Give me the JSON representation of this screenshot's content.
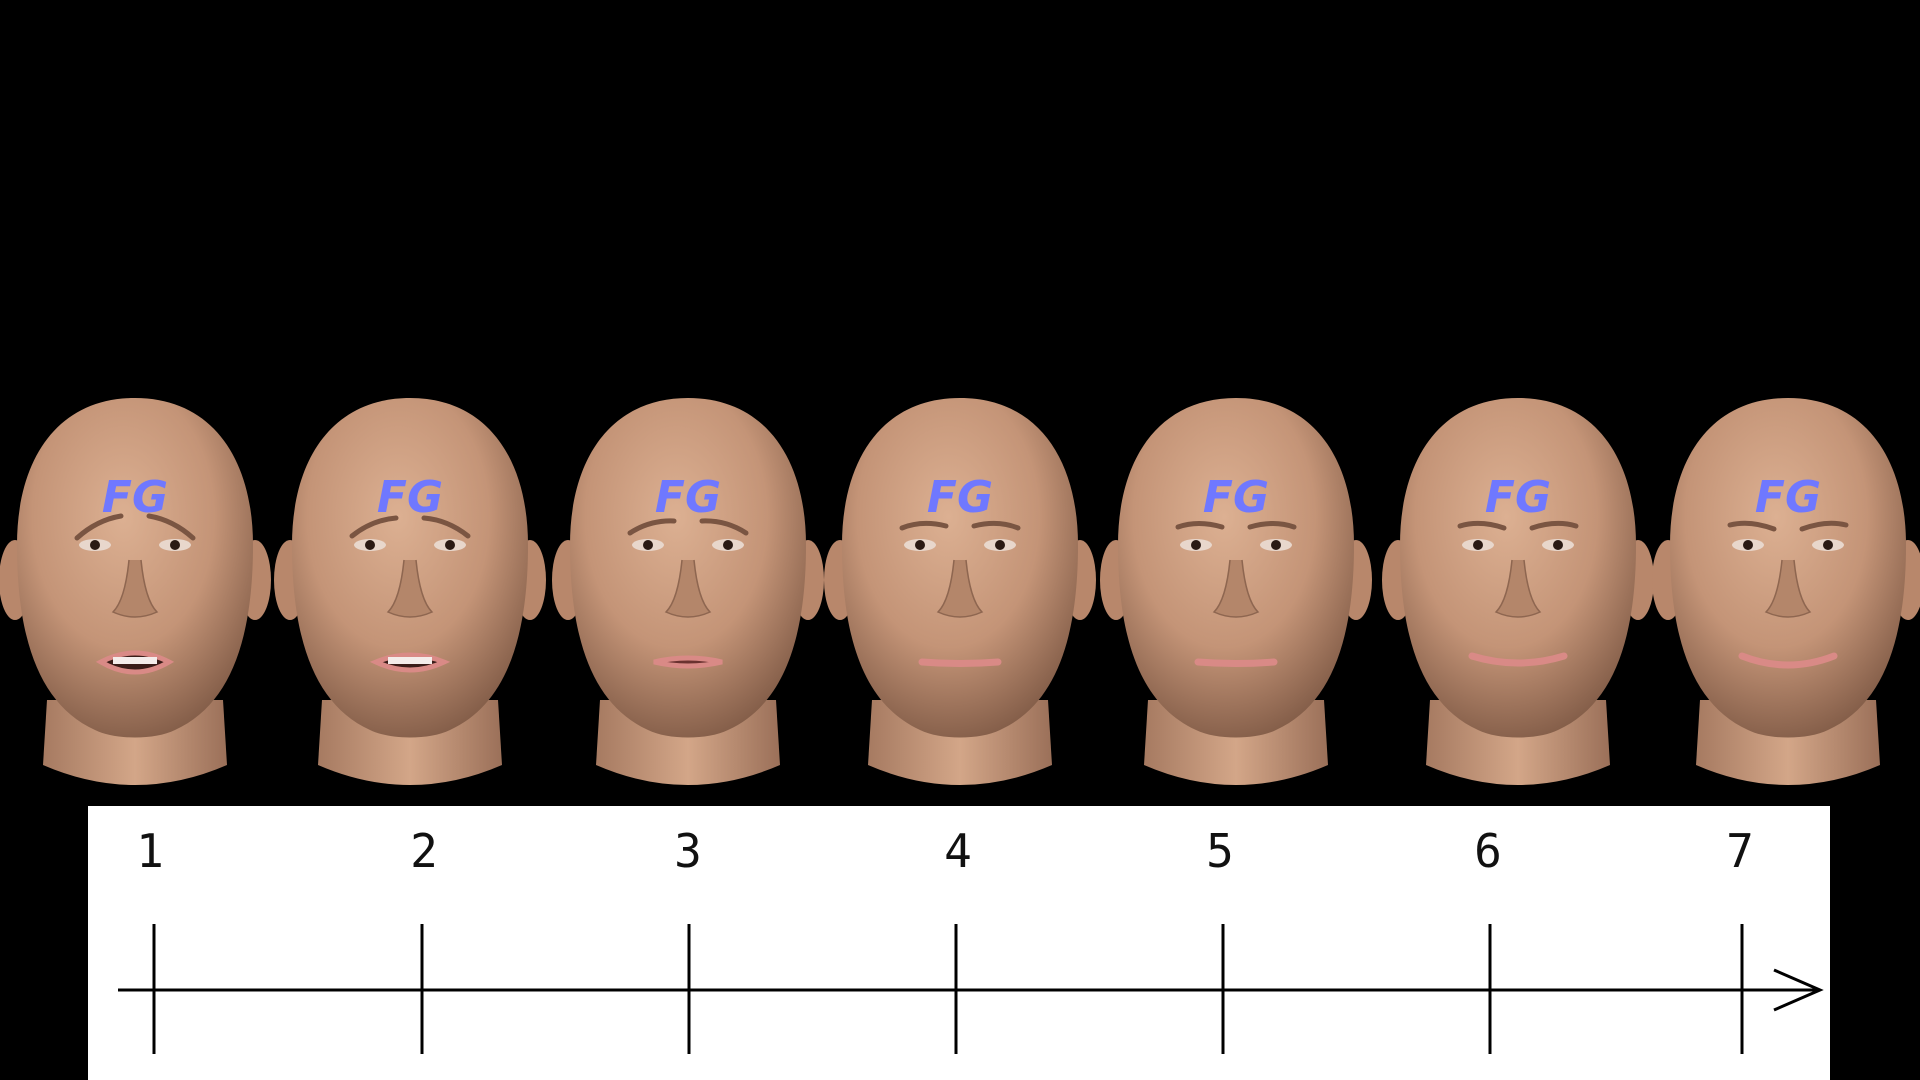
{
  "forehead_label": "FG",
  "scale": {
    "labels": [
      "1",
      "2",
      "3",
      "4",
      "5",
      "6",
      "7"
    ]
  },
  "faces": [
    {
      "level": 1,
      "expression": "strong-negative",
      "mouth": "open-teeth"
    },
    {
      "level": 2,
      "expression": "negative",
      "mouth": "open-teeth"
    },
    {
      "level": 3,
      "expression": "mild-negative",
      "mouth": "slightly-open"
    },
    {
      "level": 4,
      "expression": "neutral",
      "mouth": "closed"
    },
    {
      "level": 5,
      "expression": "mild-positive",
      "mouth": "closed"
    },
    {
      "level": 6,
      "expression": "positive",
      "mouth": "smile"
    },
    {
      "level": 7,
      "expression": "strong-positive",
      "mouth": "smile"
    }
  ],
  "colors": {
    "background": "#000000",
    "skin": "#c79a7c",
    "skin_shadow": "#8e6650",
    "forehead_text": "#6f78ff",
    "lips": "#d98a86",
    "panel": "#ffffff",
    "axis": "#000000"
  }
}
